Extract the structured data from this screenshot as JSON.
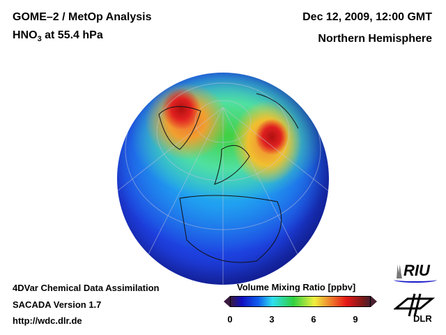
{
  "header": {
    "title": "GOME–2 / MetOp Analysis",
    "species": "HNO",
    "species_sub": "3",
    "level": " at 55.4 hPa",
    "date": "Dec 12, 2009, 12:00 GMT",
    "region": "Northern Hemisphere"
  },
  "footer": {
    "line1": "4DVar Chemical Data Assimilation",
    "line2": "SACADA Version 1.7",
    "url": "http://wdc.dlr.de"
  },
  "colorbar": {
    "title": "Volume Mixing Ratio [ppbv]",
    "min": 0,
    "max": 10,
    "ticks": [
      "0",
      "3",
      "6",
      "9"
    ],
    "colors": [
      "#3a1a40",
      "#1010c0",
      "#1060f0",
      "#30e0f0",
      "#30d040",
      "#f0f040",
      "#f09030",
      "#e81818",
      "#7a1a1a"
    ]
  },
  "logos": {
    "riu": "RIU",
    "dlr": "DLR"
  }
}
